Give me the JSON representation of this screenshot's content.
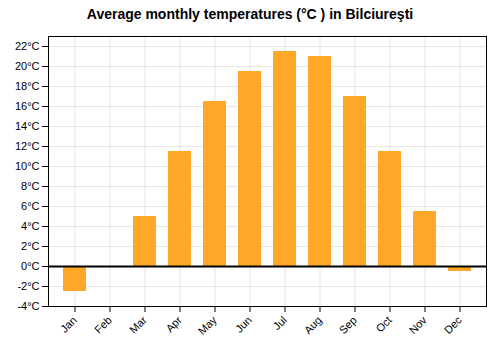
{
  "chart_data": {
    "type": "bar",
    "title": "Average monthly temperatures (°C ) in Bilciureşti",
    "categories": [
      "Jan",
      "Feb",
      "Mar",
      "Apr",
      "May",
      "Jun",
      "Jul",
      "Aug",
      "Sep",
      "Oct",
      "Nov",
      "Dec"
    ],
    "values": [
      -2.5,
      0.0,
      5.0,
      11.5,
      16.5,
      19.5,
      21.5,
      21.0,
      17.0,
      11.5,
      5.5,
      -0.5
    ],
    "color": "#FFA726",
    "ylim": [
      -4,
      23
    ],
    "yticks": [
      {
        "value": -4,
        "label": "-4°C"
      },
      {
        "value": -2,
        "label": "-2°C"
      },
      {
        "value": 0,
        "label": "0°C"
      },
      {
        "value": 2,
        "label": "2°C"
      },
      {
        "value": 4,
        "label": "4°C"
      },
      {
        "value": 6,
        "label": "6°C"
      },
      {
        "value": 8,
        "label": "8°C"
      },
      {
        "value": 10,
        "label": "10°C"
      },
      {
        "value": 12,
        "label": "12°C"
      },
      {
        "value": 14,
        "label": "14°C"
      },
      {
        "value": 16,
        "label": "16°C"
      },
      {
        "value": 18,
        "label": "18°C"
      },
      {
        "value": 20,
        "label": "20°C"
      },
      {
        "value": 22,
        "label": "22°C"
      }
    ],
    "grid": true
  }
}
